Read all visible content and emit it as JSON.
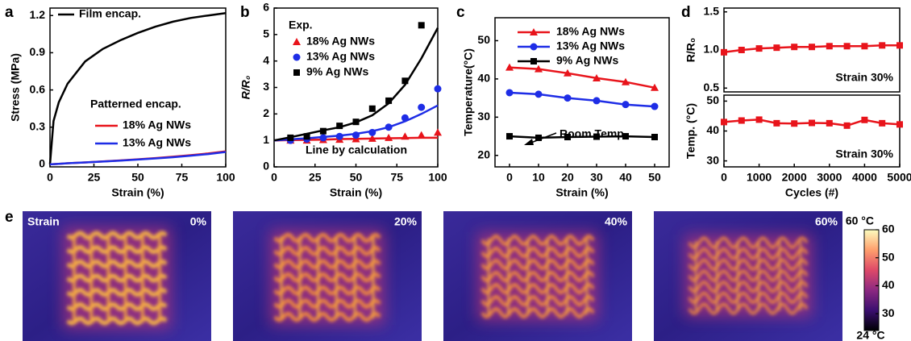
{
  "chart_data": [
    {
      "panel_label": "a",
      "type": "line",
      "x_label": "Strain (%)",
      "y_label": "Stress (MPa)",
      "x": [
        0,
        2,
        5,
        10,
        20,
        30,
        40,
        50,
        60,
        70,
        80,
        90,
        100
      ],
      "series": [
        {
          "name": "Film encap.",
          "color": "#000000",
          "values": [
            0,
            0.35,
            0.5,
            0.65,
            0.83,
            0.93,
            1.0,
            1.06,
            1.11,
            1.15,
            1.18,
            1.2,
            1.22
          ]
        },
        {
          "name": "18% Ag NWs",
          "color": "#e8141b",
          "values": [
            0,
            0.002,
            0.005,
            0.009,
            0.016,
            0.024,
            0.032,
            0.041,
            0.051,
            0.062,
            0.074,
            0.088,
            0.105
          ]
        },
        {
          "name": "13% Ag NWs",
          "color": "#1e2de6",
          "values": [
            0,
            0.002,
            0.005,
            0.009,
            0.016,
            0.023,
            0.03,
            0.039,
            0.048,
            0.058,
            0.07,
            0.083,
            0.1
          ]
        }
      ],
      "annotations": [
        "Patterned encap."
      ],
      "xlim": [
        0,
        100
      ],
      "xticks": [
        0,
        25,
        50,
        75,
        100
      ],
      "ylim": [
        -0.02,
        1.26
      ],
      "yticks": [
        0,
        0.3,
        0.6,
        0.9,
        1.2
      ]
    },
    {
      "panel_label": "b",
      "type": "scatter",
      "x_label": "Strain (%)",
      "y_label": "R/R₀",
      "legend_title": "Exp.",
      "x": [
        10,
        20,
        30,
        40,
        50,
        60,
        70,
        80,
        90,
        100
      ],
      "line_x": [
        0,
        10,
        20,
        30,
        40,
        50,
        60,
        70,
        80,
        90,
        100
      ],
      "series": [
        {
          "name": "18% Ag NWs",
          "color": "#e8141b",
          "marker": "triangle",
          "values": [
            1.0,
            1.0,
            1.02,
            1.03,
            1.05,
            1.07,
            1.1,
            1.15,
            1.2,
            1.3
          ],
          "line_values": [
            1,
            1.01,
            1.02,
            1.03,
            1.05,
            1.06,
            1.07,
            1.08,
            1.09,
            1.1,
            1.1
          ]
        },
        {
          "name": "13% Ag NWs",
          "color": "#1e2de6",
          "marker": "circle",
          "values": [
            1.0,
            1.05,
            1.1,
            1.15,
            1.2,
            1.3,
            1.5,
            1.85,
            2.25,
            2.95
          ],
          "line_values": [
            1,
            1.04,
            1.08,
            1.13,
            1.18,
            1.25,
            1.35,
            1.5,
            1.72,
            2.0,
            2.32
          ]
        },
        {
          "name": "9% Ag NWs",
          "color": "#000000",
          "marker": "square",
          "values": [
            1.1,
            1.15,
            1.35,
            1.55,
            1.7,
            2.2,
            2.5,
            3.25,
            5.35,
            null
          ],
          "line_values": [
            1,
            1.12,
            1.25,
            1.38,
            1.5,
            1.68,
            1.95,
            2.4,
            3.1,
            4.1,
            5.25
          ]
        }
      ],
      "annotations": [
        "Line by calculation"
      ],
      "xlim": [
        0,
        100
      ],
      "xticks": [
        0,
        25,
        50,
        75,
        100
      ],
      "ylim": [
        0,
        6
      ],
      "yticks": [
        0,
        1,
        2,
        3,
        4,
        5,
        6
      ]
    },
    {
      "panel_label": "c",
      "type": "line",
      "x_label": "Strain (%)",
      "y_label": "Temperature(°C)",
      "x": [
        0,
        10,
        20,
        30,
        40,
        50
      ],
      "series": [
        {
          "name": "18% Ag NWs",
          "color": "#e8141b",
          "marker": "triangle",
          "values": [
            43,
            42.6,
            41.5,
            40.2,
            39.2,
            37.7
          ]
        },
        {
          "name": "13% Ag NWs",
          "color": "#1e2de6",
          "marker": "circle",
          "values": [
            36.4,
            36,
            35,
            34.3,
            33.3,
            32.8
          ]
        },
        {
          "name": "9% Ag NWs",
          "color": "#000000",
          "marker": "square",
          "values": [
            25,
            24.6,
            24.8,
            24.9,
            25,
            24.8
          ]
        }
      ],
      "annotations": [
        "Room Temp."
      ],
      "xlim": [
        -5,
        55
      ],
      "xticks": [
        0,
        10,
        20,
        30,
        40,
        50
      ],
      "ylim": [
        17,
        56
      ],
      "yticks": [
        20,
        30,
        40,
        50
      ]
    },
    {
      "panel_label": "d",
      "type": "line",
      "y_label": "R/R₀",
      "x": [
        0,
        500,
        1000,
        1500,
        2000,
        2500,
        3000,
        3500,
        4000,
        4500,
        5000
      ],
      "series": [
        {
          "color": "#e8141b",
          "marker": "square",
          "values": [
            0.97,
            1.0,
            1.02,
            1.03,
            1.04,
            1.04,
            1.05,
            1.05,
            1.05,
            1.06,
            1.06
          ]
        }
      ],
      "annotations": [
        "Strain 30%"
      ],
      "xlim": [
        0,
        5000
      ],
      "ylim": [
        0.45,
        1.55
      ],
      "yticks": [
        0.5,
        {
          "value": 1.0,
          "label": "1.0"
        },
        1.5
      ]
    },
    {
      "type": "line",
      "x_label": "Cycles (#)",
      "y_label": "Temp. (°C)",
      "x": [
        0,
        500,
        1000,
        1500,
        2000,
        2500,
        3000,
        3500,
        4000,
        4500,
        5000
      ],
      "series": [
        {
          "color": "#e8141b",
          "marker": "square",
          "values": [
            43,
            43.5,
            43.8,
            42.6,
            42.5,
            42.7,
            42.6,
            41.8,
            43.7,
            42.6,
            42.2
          ]
        }
      ],
      "annotations": [
        "Strain 30%"
      ],
      "xlim": [
        0,
        5000
      ],
      "xticks": [
        0,
        1000,
        2000,
        3000,
        4000,
        5000
      ],
      "ylim": [
        28,
        52
      ],
      "yticks": [
        30,
        40,
        50
      ]
    },
    {
      "panel_label": "e",
      "type": "heatmap",
      "strain_label": "Strain",
      "images": [
        "0%",
        "20%",
        "40%",
        "60%"
      ],
      "colorbar": {
        "top_label": "60 °C",
        "bottom_label": "24 °C",
        "clim": [
          24,
          60
        ],
        "ticks": [
          30,
          40,
          50,
          60
        ]
      }
    }
  ]
}
